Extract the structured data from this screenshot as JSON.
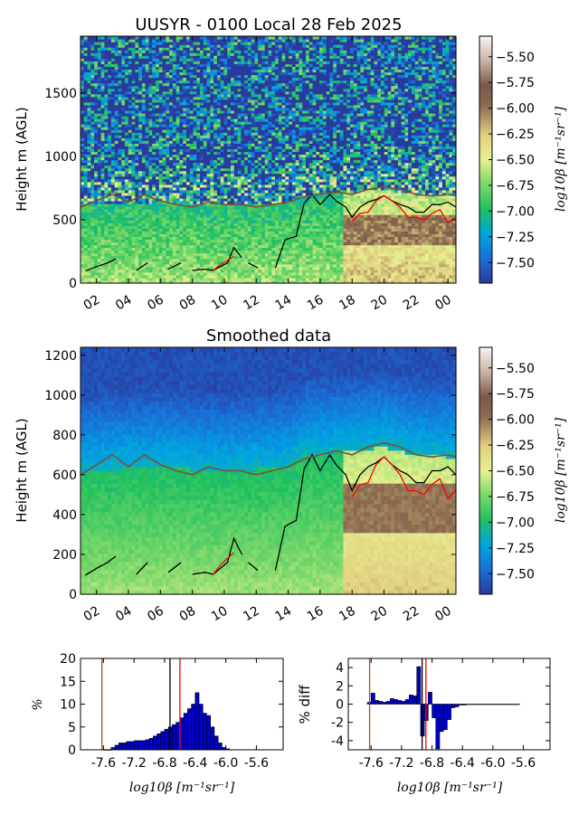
{
  "chart_data": [
    {
      "type": "heatmap",
      "title": "UUSYR - 0100 Local 28 Feb 2025",
      "ylabel": "Height m (AGL)",
      "xticks": [
        "02",
        "04",
        "06",
        "08",
        "10",
        "12",
        "14",
        "16",
        "18",
        "20",
        "22",
        "00"
      ],
      "xlim": [
        1,
        24.5
      ],
      "ylim": [
        0,
        1950
      ],
      "yticks": [
        0,
        500,
        1000,
        1500
      ],
      "colorbar": {
        "label": "log10β [m⁻¹sr⁻¹]",
        "range": [
          -7.7,
          -5.3
        ],
        "ticks": [
          -5.5,
          -5.75,
          -6.0,
          -6.25,
          -6.5,
          -6.75,
          -7.0,
          -7.25,
          -7.5
        ]
      },
      "series": [
        {
          "name": "",
          "color": "#000000",
          "x": [
            1.3,
            2,
            2.7,
            3.2,
            4.5,
            5.2,
            6.5,
            7.3,
            8,
            8.8,
            9.3,
            10.2,
            10.6,
            11.1,
            11.5,
            12.1,
            13.2,
            13.5,
            13.8,
            14,
            14.5,
            15,
            15.5,
            16,
            16.6,
            17,
            17.6,
            18,
            18.5,
            19,
            19.5,
            20,
            20.5,
            21,
            21.5,
            22,
            22.5,
            23,
            23.5,
            24,
            24.5
          ],
          "y": [
            95,
            130,
            160,
            190,
            100,
            160,
            110,
            160,
            100,
            110,
            100,
            160,
            280,
            200,
            160,
            120,
            120,
            230,
            340,
            350,
            370,
            630,
            700,
            620,
            700,
            650,
            600,
            520,
            600,
            640,
            660,
            690,
            650,
            620,
            600,
            560,
            560,
            620,
            620,
            640,
            600
          ],
          "gaps_after": [
            3,
            5,
            7,
            13,
            15
          ]
        },
        {
          "name": "",
          "color": "#ff0000",
          "x": [
            9.3,
            9.8,
            10.2,
            10.6,
            18,
            18.5,
            19,
            19.5,
            20,
            20.5,
            21,
            21.5,
            22,
            22.5,
            23,
            23.5,
            24,
            24.5
          ],
          "y": [
            100,
            150,
            180,
            210,
            490,
            550,
            560,
            650,
            690,
            650,
            600,
            520,
            520,
            500,
            550,
            580,
            480,
            520
          ],
          "gaps_after": [
            3
          ]
        },
        {
          "name": "",
          "color": "#7a5230",
          "x": [
            1,
            2,
            3,
            4,
            5,
            6,
            7,
            8,
            9,
            10,
            11,
            12,
            13,
            14,
            15,
            16,
            17,
            18,
            19,
            20,
            21,
            22,
            23,
            24,
            24.5
          ],
          "y": [
            600,
            650,
            700,
            640,
            700,
            650,
            620,
            600,
            640,
            620,
            620,
            600,
            620,
            640,
            680,
            700,
            720,
            700,
            740,
            760,
            740,
            700,
            690,
            700,
            690
          ]
        }
      ]
    },
    {
      "type": "heatmap",
      "title": "Smoothed data",
      "ylabel": "Height m (AGL)",
      "xticks": [
        "02",
        "04",
        "06",
        "08",
        "10",
        "12",
        "14",
        "16",
        "18",
        "20",
        "22",
        "00"
      ],
      "xlim": [
        1,
        24.5
      ],
      "ylim": [
        0,
        1240
      ],
      "yticks": [
        0,
        200,
        400,
        600,
        800,
        1000,
        1200
      ],
      "colorbar": {
        "label": "log10β [m⁻¹sr⁻¹]",
        "range": [
          -7.7,
          -5.3
        ],
        "ticks": [
          -5.5,
          -5.75,
          -6.0,
          -6.25,
          -6.5,
          -6.75,
          -7.0,
          -7.25,
          -7.5
        ]
      }
    },
    {
      "type": "bar",
      "ylabel": "%",
      "xlabel": "log10β [m⁻¹sr⁻¹]",
      "xlim": [
        -7.9,
        -5.25
      ],
      "ylim": [
        0,
        20
      ],
      "yticks": [
        0,
        5,
        10,
        15,
        20
      ],
      "xticks": [
        -7.6,
        -7.2,
        -6.8,
        -6.4,
        -6.0,
        -5.6
      ],
      "xticklabels": [
        "-7.6",
        "-7.2",
        "-6.8",
        "-6.4",
        "-6.0",
        "-5.6"
      ],
      "bin_start": -7.6,
      "bin_width": 0.05,
      "values": [
        0,
        0,
        0.5,
        1,
        1.5,
        1.5,
        1.8,
        1.8,
        2,
        2,
        2,
        2.2,
        2.5,
        3,
        3.5,
        4,
        4.5,
        5,
        5.5,
        6,
        7,
        8,
        9,
        10,
        12.5,
        10,
        8,
        7.5,
        5,
        3,
        1.5,
        0.5,
        0.2
      ],
      "vlines": [
        {
          "x": -7.62,
          "color": "#a0522d"
        },
        {
          "x": -6.73,
          "color": "#000000"
        },
        {
          "x": -6.6,
          "color": "#ff0000"
        }
      ]
    },
    {
      "type": "bar",
      "ylabel": "% diff",
      "xlabel": "log10β [m⁻¹sr⁻¹]",
      "xlim": [
        -7.9,
        -5.25
      ],
      "ylim": [
        -5,
        5
      ],
      "yticks": [
        -4,
        -2,
        0,
        2,
        4
      ],
      "xticks": [
        -7.6,
        -7.2,
        -6.8,
        -6.4,
        -6.0,
        -5.6
      ],
      "xticklabels": [
        "-7.6",
        "-7.2",
        "-6.8",
        "-6.4",
        "-6.0",
        "-5.6"
      ],
      "bin_start": -7.65,
      "bin_width": 0.05,
      "values": [
        0.2,
        1.2,
        0.4,
        0.3,
        0.2,
        0.3,
        0.6,
        0.5,
        0.4,
        0.3,
        0.5,
        1.0,
        0.9,
        4.1,
        -3.5,
        -1.8,
        1.3,
        -1.5,
        -4.9,
        -3.0,
        -2.8,
        -1.7,
        -0.4,
        -0.3,
        -0.1,
        -0.1,
        -0.05,
        -0.05,
        -0.05,
        -0.05,
        -0.05,
        -0.05,
        -0.05,
        -0.05,
        -0.05,
        -0.05,
        -0.05,
        -0.05,
        -0.05,
        -0.05
      ],
      "vlines": [
        {
          "x": -7.62,
          "color": "#a0522d"
        },
        {
          "x": -6.93,
          "color": "#000000"
        },
        {
          "x": -6.88,
          "color": "#ff0000"
        }
      ]
    }
  ]
}
